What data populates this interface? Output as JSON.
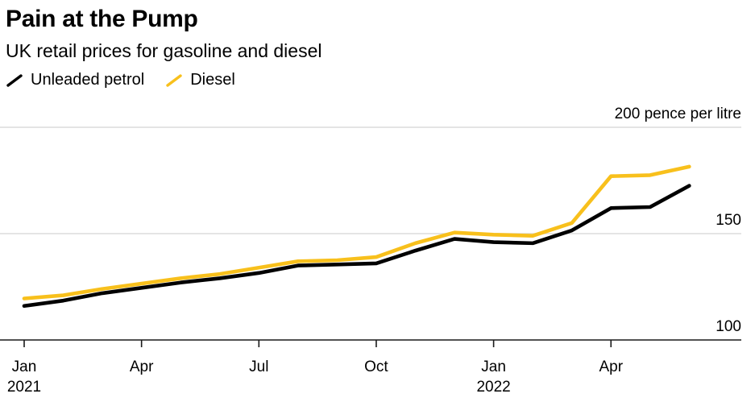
{
  "chart_data": {
    "type": "line",
    "title": "Pain at the Pump",
    "subtitle": "UK retail prices for gasoline and diesel",
    "unit": "pence per litre",
    "x": [
      "Jan 2021",
      "Feb 2021",
      "Mar 2021",
      "Apr 2021",
      "May 2021",
      "Jun 2021",
      "Jul 2021",
      "Aug 2021",
      "Sep 2021",
      "Oct 2021",
      "Nov 2021",
      "Dec 2021",
      "Jan 2022",
      "Feb 2022",
      "Mar 2022",
      "Apr 2022",
      "May 2022",
      "Jun 2022"
    ],
    "series": [
      {
        "name": "Unleaded petrol",
        "color": "#000000",
        "values": [
          116,
          118.5,
          122,
          124.5,
          127,
          129,
          131.5,
          135,
          135.5,
          136,
          142,
          147.5,
          146,
          145.5,
          151.5,
          162,
          162.5,
          172.5
        ]
      },
      {
        "name": "Diesel",
        "color": "#F8C01C",
        "values": [
          119.5,
          121,
          124,
          126.5,
          129,
          131,
          134,
          137,
          137.5,
          139,
          145.5,
          150.5,
          149.5,
          149,
          155,
          177,
          177.5,
          181.5
        ]
      }
    ],
    "ylim": [
      100,
      200
    ],
    "yticks": [
      {
        "value": 100,
        "label": "100"
      },
      {
        "value": 150,
        "label": "150"
      },
      {
        "value": 200,
        "label": "200 pence per litre"
      }
    ],
    "xticks": [
      {
        "month_index": 0,
        "label": "Jan",
        "year": "2021"
      },
      {
        "month_index": 3,
        "label": "Apr"
      },
      {
        "month_index": 6,
        "label": "Jul"
      },
      {
        "month_index": 9,
        "label": "Oct"
      },
      {
        "month_index": 12,
        "label": "Jan",
        "year": "2022"
      },
      {
        "month_index": 15,
        "label": "Apr"
      }
    ],
    "grid": "horizontal",
    "legend_position": "top-left"
  },
  "colors": {
    "background": "#FFFFFF",
    "text": "#000000",
    "gridline": "#DBDBDB",
    "axis_line": "#1A1A1A",
    "petrol_black": "#000000",
    "diesel_yellow": "#F8C01C"
  }
}
